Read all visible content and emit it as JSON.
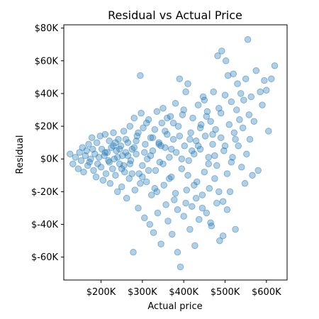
{
  "chart_data": {
    "type": "scatter",
    "title": "Residual vs Actual Price",
    "xlabel": "Actual price",
    "ylabel": "Residual",
    "xlim": [
      110000,
      650000
    ],
    "ylim": [
      -74000,
      82000
    ],
    "grid": false,
    "x_ticks": [
      {
        "value": 200000,
        "label": "$200K"
      },
      {
        "value": 300000,
        "label": "$300K"
      },
      {
        "value": 400000,
        "label": "$400K"
      },
      {
        "value": 500000,
        "label": "$500K"
      },
      {
        "value": 600000,
        "label": "$600K"
      }
    ],
    "y_ticks": [
      {
        "value": 80000,
        "label": "$80K"
      },
      {
        "value": 60000,
        "label": "$60K"
      },
      {
        "value": 40000,
        "label": "$40K"
      },
      {
        "value": 20000,
        "label": "$20K"
      },
      {
        "value": 0,
        "label": "$0K"
      },
      {
        "value": -20000,
        "label": "$-20K"
      },
      {
        "value": -40000,
        "label": "$-40K"
      },
      {
        "value": -60000,
        "label": "$-60K"
      }
    ],
    "series": [
      {
        "color": "#1f77b4",
        "opacity": 0.35,
        "points": [
          [
            125000,
            3000
          ],
          [
            132000,
            -3000
          ],
          [
            138000,
            1000
          ],
          [
            145000,
            -6000
          ],
          [
            148000,
            4000
          ],
          [
            152000,
            -1000
          ],
          [
            155000,
            7000
          ],
          [
            158000,
            -8000
          ],
          [
            162000,
            2000
          ],
          [
            165000,
            5000
          ],
          [
            168000,
            -4000
          ],
          [
            170000,
            9000
          ],
          [
            172000,
            -2000
          ],
          [
            175000,
            0
          ],
          [
            178000,
            13000
          ],
          [
            180000,
            6000
          ],
          [
            182000,
            -7000
          ],
          [
            185000,
            3000
          ],
          [
            188000,
            -11000
          ],
          [
            190000,
            10000
          ],
          [
            192000,
            -3000
          ],
          [
            195000,
            1000
          ],
          [
            198000,
            14000
          ],
          [
            200000,
            -5000
          ],
          [
            202000,
            6000
          ],
          [
            205000,
            -13000
          ],
          [
            208000,
            2000
          ],
          [
            210000,
            15000
          ],
          [
            212000,
            -9000
          ],
          [
            215000,
            4000
          ],
          [
            218000,
            -1000
          ],
          [
            220000,
            11000
          ],
          [
            222000,
            -15000
          ],
          [
            225000,
            7000
          ],
          [
            228000,
            -6000
          ],
          [
            230000,
            16000
          ],
          [
            232000,
            0
          ],
          [
            235000,
            -10000
          ],
          [
            237000,
            5000
          ],
          [
            240000,
            -20000
          ],
          [
            242000,
            12000
          ],
          [
            245000,
            -3000
          ],
          [
            248000,
            8000
          ],
          [
            250000,
            -17000
          ],
          [
            252000,
            2000
          ],
          [
            255000,
            17000
          ],
          [
            257000,
            -8000
          ],
          [
            260000,
            4000
          ],
          [
            262000,
            -24000
          ],
          [
            265000,
            10000
          ],
          [
            268000,
            -12000
          ],
          [
            270000,
            20000
          ],
          [
            272000,
            -1000
          ],
          [
            275000,
            6000
          ],
          [
            278000,
            -57000
          ],
          [
            280000,
            25000
          ],
          [
            282000,
            -19000
          ],
          [
            285000,
            3000
          ],
          [
            287000,
            14000
          ],
          [
            290000,
            -30000
          ],
          [
            292000,
            -9000
          ],
          [
            295000,
            51000
          ],
          [
            297000,
            28000
          ],
          [
            300000,
            -4000
          ],
          [
            302000,
            19000
          ],
          [
            305000,
            -36000
          ],
          [
            307000,
            9000
          ],
          [
            310000,
            -14000
          ],
          [
            312000,
            0
          ],
          [
            315000,
            24000
          ],
          [
            318000,
            -40000
          ],
          [
            320000,
            13000
          ],
          [
            322000,
            -22000
          ],
          [
            325000,
            5000
          ],
          [
            327000,
            -45000
          ],
          [
            330000,
            18000
          ],
          [
            332000,
            -7000
          ],
          [
            335000,
            29000
          ],
          [
            337000,
            -33000
          ],
          [
            340000,
            10000
          ],
          [
            342000,
            -2000
          ],
          [
            345000,
            -52000
          ],
          [
            347000,
            22000
          ],
          [
            350000,
            31000
          ],
          [
            352000,
            -16000
          ],
          [
            355000,
            7000
          ],
          [
            357000,
            -28000
          ],
          [
            360000,
            15000
          ],
          [
            362000,
            -38000
          ],
          [
            365000,
            1000
          ],
          [
            368000,
            26000
          ],
          [
            370000,
            -11000
          ],
          [
            372000,
            -46000
          ],
          [
            375000,
            12000
          ],
          [
            377000,
            -25000
          ],
          [
            380000,
            34000
          ],
          [
            382000,
            4000
          ],
          [
            385000,
            -57000
          ],
          [
            387000,
            20000
          ],
          [
            390000,
            49000
          ],
          [
            392000,
            -66000
          ],
          [
            395000,
            -6000
          ],
          [
            397000,
            27000
          ],
          [
            400000,
            -35000
          ],
          [
            402000,
            8000
          ],
          [
            405000,
            41000
          ],
          [
            407000,
            -19000
          ],
          [
            410000,
            46000
          ],
          [
            412000,
            -1000
          ],
          [
            415000,
            -43000
          ],
          [
            417000,
            16000
          ],
          [
            420000,
            -29000
          ],
          [
            422000,
            25000
          ],
          [
            425000,
            3000
          ],
          [
            427000,
            -53000
          ],
          [
            430000,
            11000
          ],
          [
            432000,
            -14000
          ],
          [
            435000,
            33000
          ],
          [
            437000,
            -37000
          ],
          [
            440000,
            6000
          ],
          [
            442000,
            21000
          ],
          [
            445000,
            -22000
          ],
          [
            447000,
            38000
          ],
          [
            450000,
            -8000
          ],
          [
            452000,
            14000
          ],
          [
            455000,
            -33000
          ],
          [
            457000,
            29000
          ],
          [
            460000,
            1000
          ],
          [
            462000,
            -18000
          ],
          [
            465000,
            23000
          ],
          [
            467000,
            -41000
          ],
          [
            470000,
            9000
          ],
          [
            472000,
            41000
          ],
          [
            475000,
            -12000
          ],
          [
            477000,
            18000
          ],
          [
            480000,
            -4000
          ],
          [
            482000,
            63000
          ],
          [
            485000,
            31000
          ],
          [
            487000,
            -50000
          ],
          [
            490000,
            13000
          ],
          [
            492000,
            66000
          ],
          [
            495000,
            -26000
          ],
          [
            497000,
            5000
          ],
          [
            500000,
            39000
          ],
          [
            502000,
            60000
          ],
          [
            505000,
            -9000
          ],
          [
            507000,
            51000
          ],
          [
            510000,
            21000
          ],
          [
            512000,
            -20000
          ],
          [
            515000,
            35000
          ],
          [
            518000,
            1000
          ],
          [
            520000,
            52000
          ],
          [
            522000,
            16000
          ],
          [
            525000,
            -43000
          ],
          [
            528000,
            30000
          ],
          [
            530000,
            46000
          ],
          [
            532000,
            8000
          ],
          [
            535000,
            24000
          ],
          [
            538000,
            40000
          ],
          [
            540000,
            -5000
          ],
          [
            543000,
            19000
          ],
          [
            545000,
            36000
          ],
          [
            548000,
            -15000
          ],
          [
            550000,
            49000
          ],
          [
            552000,
            3000
          ],
          [
            555000,
            73000
          ],
          [
            558000,
            27000
          ],
          [
            560000,
            12000
          ],
          [
            563000,
            38000
          ],
          [
            566000,
            -10000
          ],
          [
            570000,
            23000
          ],
          [
            575000,
            54000
          ],
          [
            580000,
            -7000
          ],
          [
            585000,
            41000
          ],
          [
            590000,
            33000
          ],
          [
            595000,
            48000
          ],
          [
            600000,
            42000
          ],
          [
            605000,
            17000
          ],
          [
            612000,
            49000
          ],
          [
            620000,
            57000
          ],
          [
            210000,
            4000
          ],
          [
            220000,
            -2000
          ],
          [
            230000,
            8000
          ],
          [
            240000,
            1000
          ],
          [
            250000,
            -6000
          ],
          [
            260000,
            12000
          ],
          [
            270000,
            -3000
          ],
          [
            280000,
            7000
          ],
          [
            290000,
            16000
          ],
          [
            300000,
            -11000
          ],
          [
            310000,
            22000
          ],
          [
            320000,
            2000
          ],
          [
            330000,
            -18000
          ],
          [
            340000,
            9000
          ],
          [
            350000,
            -3000
          ],
          [
            360000,
            25000
          ],
          [
            370000,
            6000
          ],
          [
            380000,
            -21000
          ],
          [
            390000,
            14000
          ],
          [
            400000,
            30000
          ],
          [
            410000,
            -10000
          ],
          [
            420000,
            5000
          ],
          [
            430000,
            -24000
          ],
          [
            440000,
            19000
          ],
          [
            450000,
            36000
          ],
          [
            460000,
            -3000
          ],
          [
            470000,
            15000
          ],
          [
            480000,
            -27000
          ],
          [
            490000,
            28000
          ],
          [
            500000,
            8000
          ],
          [
            235000,
            10000
          ],
          [
            245000,
            6000
          ],
          [
            255000,
            -4000
          ],
          [
            265000,
            2000
          ],
          [
            275000,
            -9000
          ],
          [
            285000,
            11000
          ],
          [
            295000,
            -15000
          ],
          [
            305000,
            4000
          ],
          [
            315000,
            -7000
          ],
          [
            325000,
            13000
          ],
          [
            335000,
            -20000
          ],
          [
            345000,
            8000
          ],
          [
            355000,
            17000
          ],
          [
            365000,
            -12000
          ],
          [
            375000,
            22000
          ],
          [
            385000,
            -31000
          ],
          [
            395000,
            0
          ],
          [
            405000,
            -27000
          ],
          [
            415000,
            12000
          ],
          [
            425000,
            -16000
          ],
          [
            435000,
            8000
          ],
          [
            445000,
            -30000
          ],
          [
            455000,
            26000
          ],
          [
            465000,
            -39000
          ],
          [
            475000,
            2000
          ],
          [
            485000,
            -20000
          ],
          [
            495000,
            -47000
          ],
          [
            505000,
            -31000
          ],
          [
            515000,
            -2000
          ],
          [
            525000,
            12000
          ]
        ]
      }
    ]
  }
}
